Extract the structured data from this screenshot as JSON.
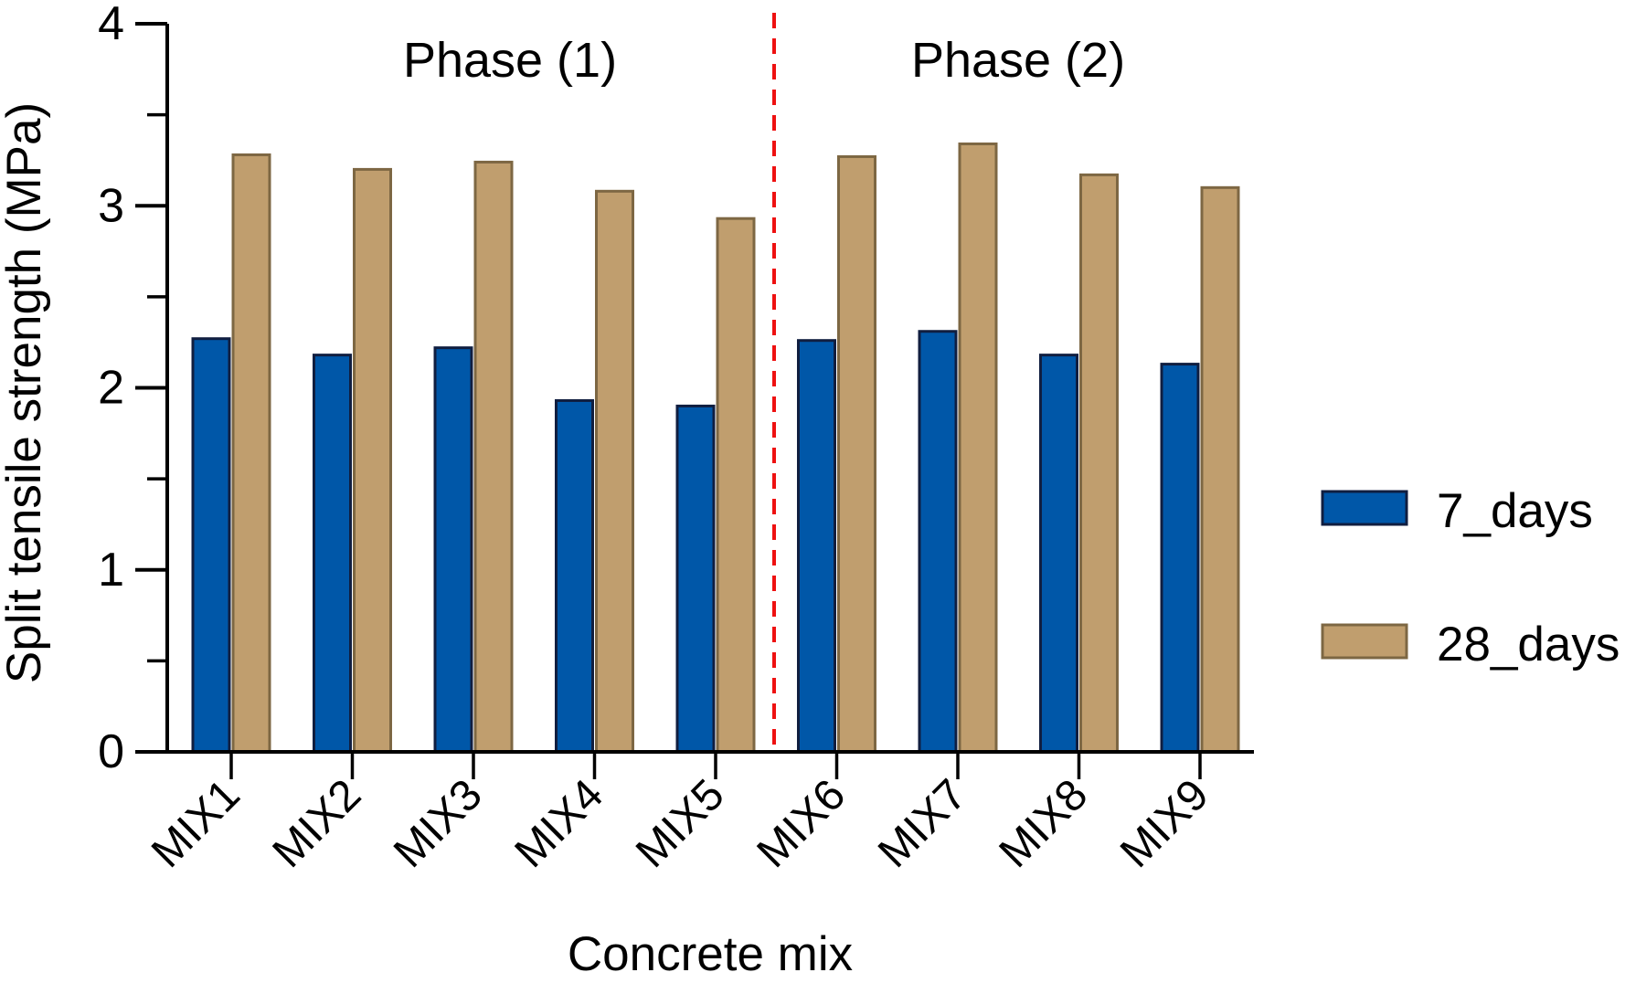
{
  "figure": {
    "background": "#ffffff",
    "text_color": "#000000",
    "axis_color": "#000000"
  },
  "chart_data": {
    "type": "bar",
    "title": "",
    "xlabel": "Concrete mix",
    "ylabel": "Split tensile strength (MPa)",
    "categories": [
      "MIX1",
      "MIX2",
      "MIX3",
      "MIX4",
      "MIX5",
      "MIX6",
      "MIX7",
      "MIX8",
      "MIX9"
    ],
    "series": [
      {
        "name": "7_days",
        "color": "#0057A8",
        "border": "#101E40",
        "values": [
          2.27,
          2.18,
          2.22,
          1.93,
          1.9,
          2.26,
          2.31,
          2.18,
          2.13
        ]
      },
      {
        "name": "28_days",
        "color": "#C09E6E",
        "border": "#7D6743",
        "values": [
          3.28,
          3.2,
          3.24,
          3.08,
          2.93,
          3.27,
          3.34,
          3.17,
          3.1
        ]
      }
    ],
    "ylim": [
      0,
      4
    ],
    "yticks": [
      0,
      1,
      2,
      3,
      4
    ],
    "minor_yticks": [
      0.5,
      1.5,
      2.5,
      3.5
    ],
    "grid": false,
    "legend_position": "right",
    "annotations": [
      {
        "text": "Phase (1)"
      },
      {
        "text": "Phase (2)"
      }
    ],
    "divider": {
      "after_category": "MIX5",
      "style": "dashed",
      "color": "#EE1111"
    }
  }
}
